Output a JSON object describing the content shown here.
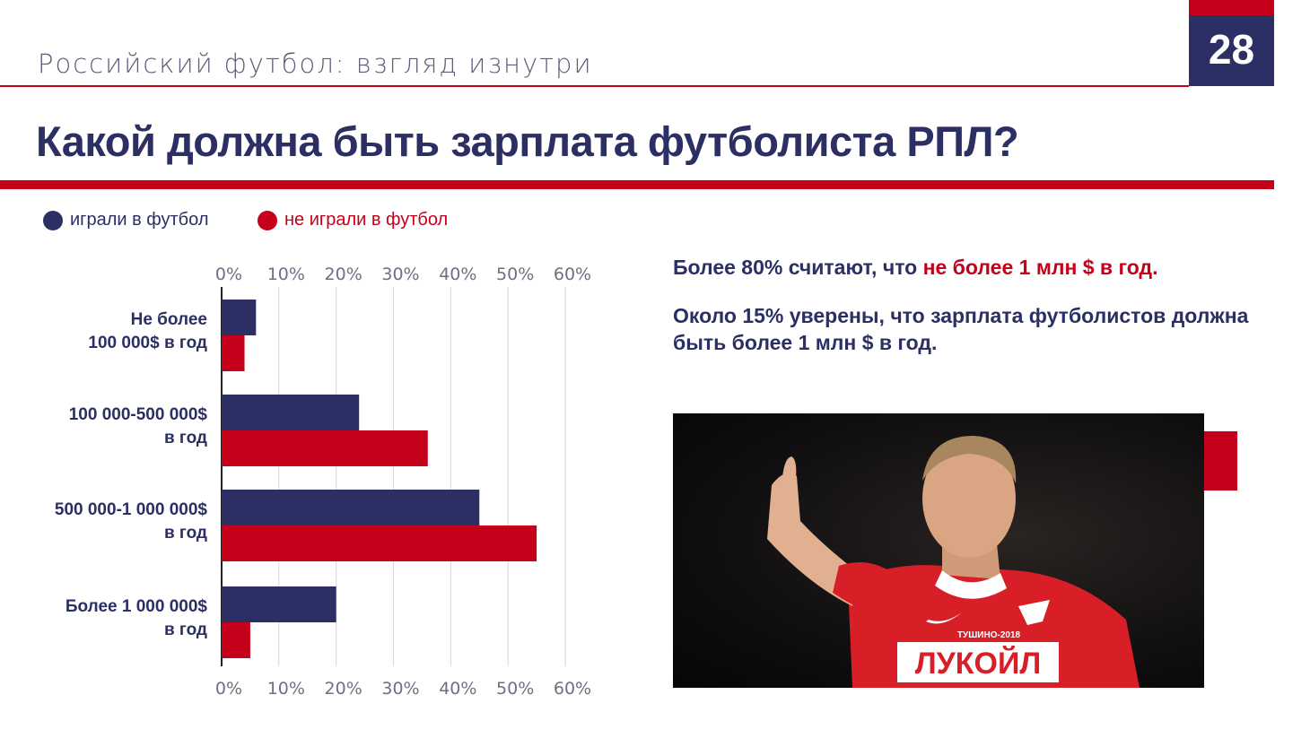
{
  "header": {
    "subtitle": "Российский футбол: взгляд изнутри",
    "page_number": "28",
    "title": "Какой должна быть зарплата футболиста РПЛ?"
  },
  "colors": {
    "navy": "#2b2f63",
    "red": "#c4001a"
  },
  "legend": {
    "played": "играли в футбол",
    "not_played": "не играли в футбол"
  },
  "notes": {
    "note1_prefix": "Более 80% считают, что ",
    "note1_accent": "не более 1 млн $ в год.",
    "note2": "Около 15% уверены, что зарплата футболистов должна быть более 1 млн $ в год."
  },
  "photo": {
    "shirt_sponsor": "ЛУКОЙЛ",
    "shirt_text": "ТУШИНО-2018",
    "icon": "football-player-photo"
  },
  "chart_data": {
    "type": "bar",
    "orientation": "horizontal",
    "categories": [
      [
        "Не более",
        "100 000$ в год"
      ],
      [
        "100 000-500 000$",
        "в год"
      ],
      [
        "500 000-1 000 000$",
        "в год"
      ],
      [
        "Более 1 000 000$",
        "в год"
      ]
    ],
    "series": [
      {
        "name": "играли в футбол",
        "color": "#2b2f63",
        "values": [
          6,
          24,
          45,
          20
        ]
      },
      {
        "name": "не играли в футбол",
        "color": "#c4001a",
        "values": [
          4,
          36,
          55,
          5
        ]
      }
    ],
    "xlim": [
      0,
      60
    ],
    "ticks": [
      "0%",
      "10%",
      "20%",
      "30%",
      "40%",
      "50%",
      "60%"
    ],
    "grid": true,
    "legend": "top"
  }
}
